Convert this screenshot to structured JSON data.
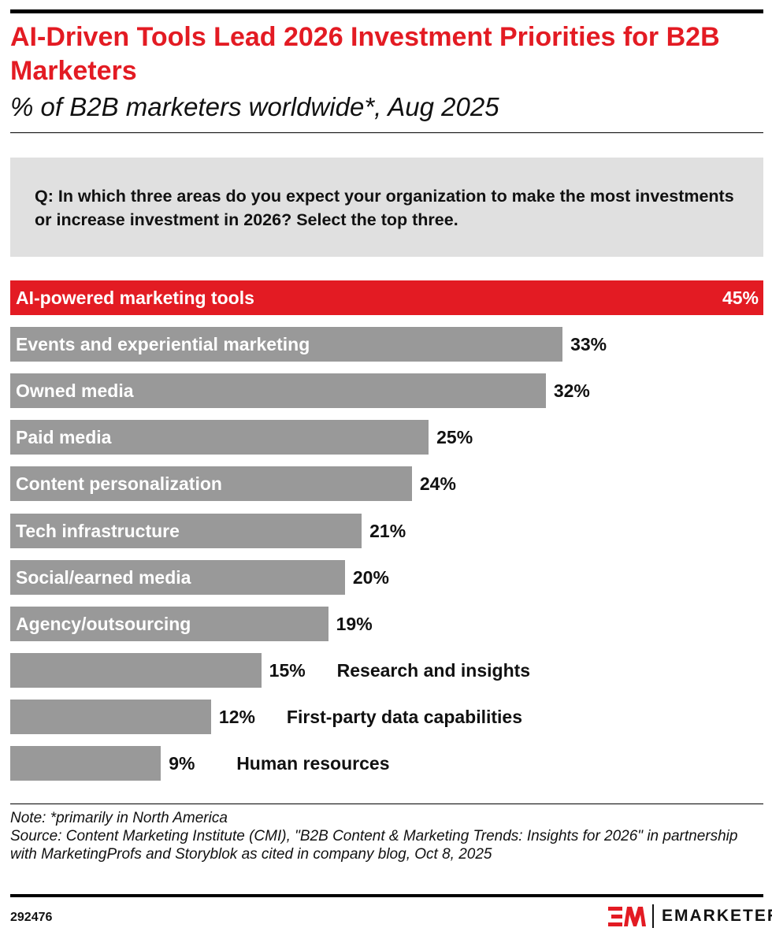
{
  "title": "AI-Driven Tools Lead 2026 Investment Priorities for B2B Marketers",
  "subtitle": "% of B2B marketers worldwide*, Aug 2025",
  "question": "Q: In which three areas do you expect your organization to make the most investments or increase investment in 2026? Select the top three.",
  "colors": {
    "highlight": "#e31b23",
    "bar": "#999999",
    "question_box": "#e0e0e0"
  },
  "chart_data": {
    "type": "bar",
    "orientation": "horizontal",
    "categories": [
      "AI-powered marketing tools",
      "Events and experiential marketing",
      "Owned media",
      "Paid media",
      "Content personalization",
      "Tech infrastructure",
      "Social/earned media",
      "Agency/outsourcing",
      "Research and insights",
      "First-party data capabilities",
      "Human resources"
    ],
    "values": [
      45,
      33,
      32,
      25,
      24,
      21,
      20,
      19,
      15,
      12,
      9
    ],
    "value_labels": [
      "45%",
      "33%",
      "32%",
      "25%",
      "24%",
      "21%",
      "20%",
      "19%",
      "15%",
      "12%",
      "9%"
    ],
    "highlighted_index": 0,
    "unit": "%",
    "xlim": [
      0,
      45
    ],
    "grid": false
  },
  "note": "Note: *primarily in North America",
  "source": "Source: Content Marketing Institute (CMI), \"B2B Content & Marketing Trends: Insights for 2026\" in partnership with MarketingProfs and Storyblok as cited in company blog, Oct 8, 2025",
  "chart_id": "292476",
  "brand": {
    "logo_mark": "EM",
    "name": "EMARKETER"
  }
}
